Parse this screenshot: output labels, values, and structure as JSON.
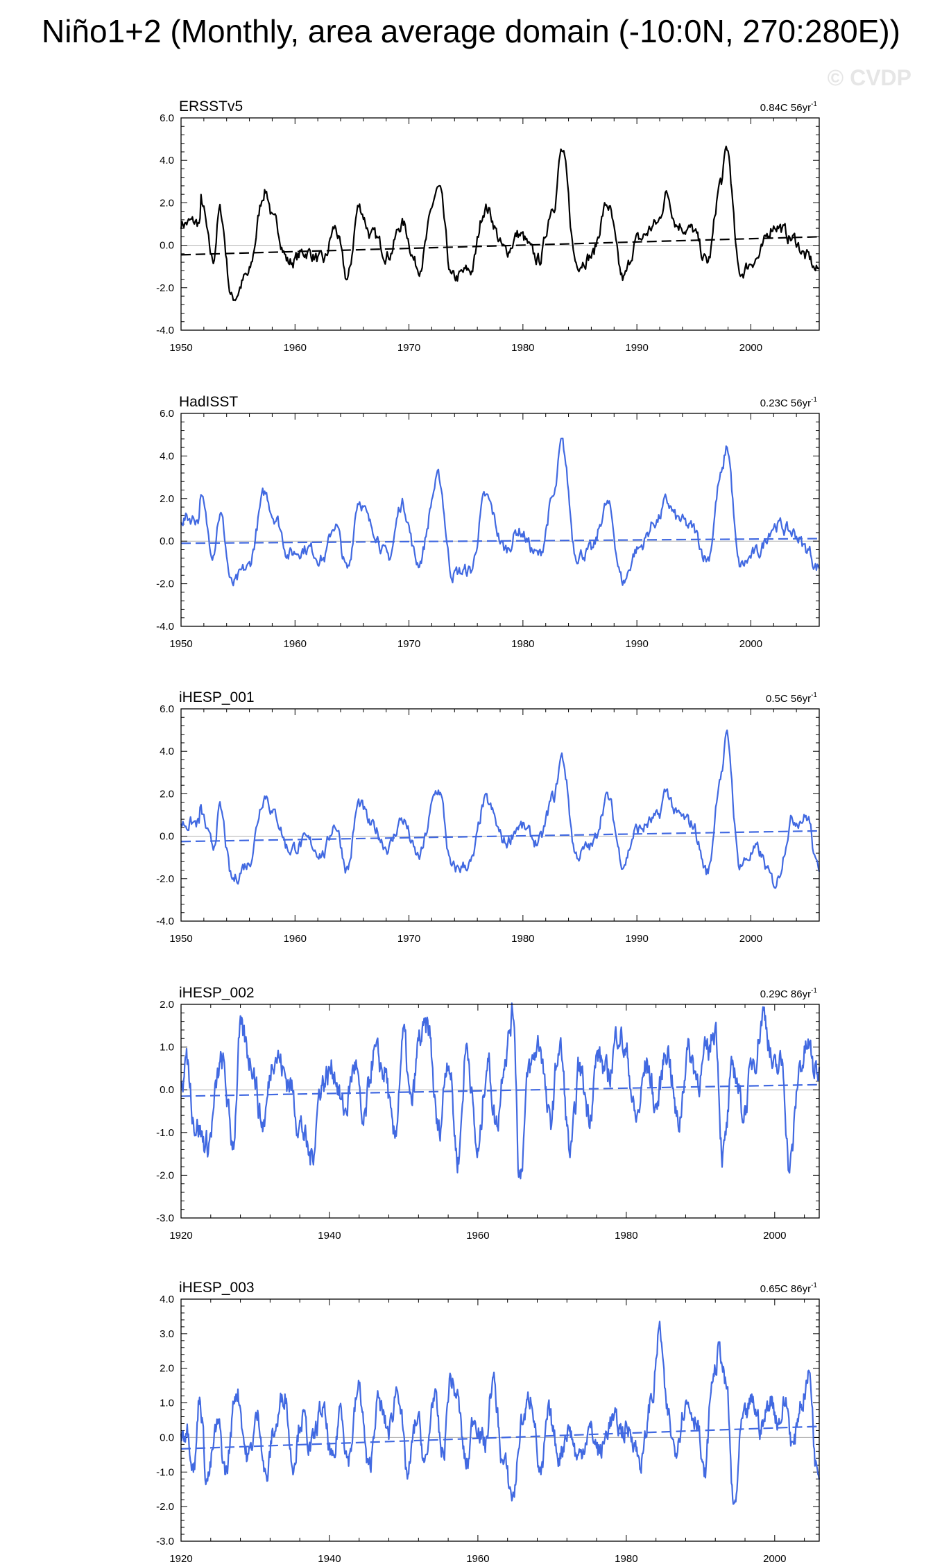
{
  "page": {
    "title": "Niño1+2 (Monthly, area average domain (-10:0N, 270:280E))",
    "watermark": "© CVDP"
  },
  "colors": {
    "obs": "#000000",
    "model": "#4169e1",
    "zero": "#b0b0b0"
  },
  "chart_data": [
    {
      "type": "line",
      "name": "ERSSTv5",
      "title": "ERSSTv5",
      "trend_label": "0.84C 56yr",
      "trend_sup": "-1",
      "color": "obs",
      "xlim": [
        1950,
        2006
      ],
      "ylim": [
        -4.0,
        6.0
      ],
      "yticks": [
        "6.0",
        "4.0",
        "2.0",
        "0.0",
        "-2.0",
        "-4.0"
      ],
      "xticks": [
        "1950",
        "1960",
        "1970",
        "1980",
        "1990",
        "2000"
      ],
      "trend": [
        -0.45,
        0.4
      ],
      "events": [
        [
          1951.7,
          2.1
        ],
        [
          1952.8,
          -0.7
        ],
        [
          1953.4,
          1.6
        ],
        [
          1954.5,
          -2.5
        ],
        [
          1955.8,
          -1.5
        ],
        [
          1957.4,
          2.6
        ],
        [
          1958.2,
          1.0
        ],
        [
          1959.5,
          -0.8
        ],
        [
          1961.0,
          -0.3
        ],
        [
          1962.5,
          -0.8
        ],
        [
          1963.5,
          0.8
        ],
        [
          1964.6,
          -1.6
        ],
        [
          1965.6,
          1.8
        ],
        [
          1966.8,
          0.4
        ],
        [
          1968.2,
          -0.4
        ],
        [
          1969.4,
          1.0
        ],
        [
          1970.8,
          -1.0
        ],
        [
          1972.6,
          2.6
        ],
        [
          1973.8,
          -1.6
        ],
        [
          1975.4,
          -1.2
        ],
        [
          1976.7,
          1.8
        ],
        [
          1978.5,
          -0.3
        ],
        [
          1979.6,
          0.5
        ],
        [
          1981.4,
          -0.7
        ],
        [
          1982.7,
          2.0
        ],
        [
          1983.4,
          4.4
        ],
        [
          1984.7,
          -0.8
        ],
        [
          1986.0,
          -0.5
        ],
        [
          1987.4,
          1.9
        ],
        [
          1988.8,
          -1.6
        ],
        [
          1990.0,
          0.2
        ],
        [
          1991.8,
          1.0
        ],
        [
          1992.6,
          2.4
        ],
        [
          1993.6,
          1.0
        ],
        [
          1994.8,
          0.7
        ],
        [
          1996.2,
          -0.8
        ],
        [
          1997.4,
          3.0
        ],
        [
          1997.9,
          4.5
        ],
        [
          1999.0,
          -1.3
        ],
        [
          2000.5,
          -0.6
        ],
        [
          2002.1,
          1.0
        ],
        [
          2003.7,
          0.3
        ],
        [
          2005.0,
          -0.6
        ],
        [
          2005.8,
          -1.2
        ]
      ]
    },
    {
      "type": "line",
      "name": "HadISST",
      "title": "HadISST",
      "trend_label": "0.23C 56yr",
      "trend_sup": "-1",
      "color": "model",
      "xlim": [
        1950,
        2006
      ],
      "ylim": [
        -4.0,
        6.0
      ],
      "yticks": [
        "6.0",
        "4.0",
        "2.0",
        "0.0",
        "-2.0",
        "-4.0"
      ],
      "xticks": [
        "1950",
        "1960",
        "1970",
        "1980",
        "1990",
        "2000"
      ],
      "trend": [
        -0.1,
        0.12
      ],
      "events": [
        [
          1951.6,
          2.2
        ],
        [
          1952.8,
          -0.4
        ],
        [
          1953.4,
          1.3
        ],
        [
          1954.5,
          -2.1
        ],
        [
          1955.8,
          -1.3
        ],
        [
          1957.4,
          2.2
        ],
        [
          1958.2,
          1.2
        ],
        [
          1959.5,
          -0.6
        ],
        [
          1961.0,
          -0.3
        ],
        [
          1962.5,
          -0.8
        ],
        [
          1963.5,
          0.8
        ],
        [
          1964.6,
          -1.4
        ],
        [
          1965.6,
          2.0
        ],
        [
          1966.8,
          0.6
        ],
        [
          1968.2,
          -0.8
        ],
        [
          1969.4,
          1.8
        ],
        [
          1970.8,
          -1.0
        ],
        [
          1972.6,
          2.9
        ],
        [
          1973.8,
          -1.5
        ],
        [
          1975.4,
          -1.4
        ],
        [
          1976.7,
          2.0
        ],
        [
          1978.5,
          -0.4
        ],
        [
          1979.6,
          0.5
        ],
        [
          1981.4,
          -0.7
        ],
        [
          1982.7,
          2.0
        ],
        [
          1983.4,
          4.5
        ],
        [
          1984.7,
          -0.6
        ],
        [
          1986.0,
          -0.5
        ],
        [
          1987.4,
          1.7
        ],
        [
          1988.8,
          -1.9
        ],
        [
          1990.0,
          -0.4
        ],
        [
          1991.8,
          1.0
        ],
        [
          1992.6,
          1.8
        ],
        [
          1993.6,
          1.0
        ],
        [
          1994.8,
          0.6
        ],
        [
          1996.2,
          -0.8
        ],
        [
          1997.4,
          3.0
        ],
        [
          1997.9,
          4.4
        ],
        [
          1999.0,
          -1.2
        ],
        [
          2000.5,
          -0.6
        ],
        [
          2002.1,
          0.8
        ],
        [
          2003.7,
          0.4
        ],
        [
          2005.0,
          -0.4
        ],
        [
          2005.8,
          -1.2
        ]
      ]
    },
    {
      "type": "line",
      "name": "iHESP_001",
      "title": "iHESP_001",
      "trend_label": "0.5C 56yr",
      "trend_sup": "-1",
      "color": "model",
      "xlim": [
        1950,
        2006
      ],
      "ylim": [
        -4.0,
        6.0
      ],
      "yticks": [
        "6.0",
        "4.0",
        "2.0",
        "0.0",
        "-2.0",
        "-4.0"
      ],
      "xticks": [
        "1950",
        "1960",
        "1970",
        "1980",
        "1990",
        "2000"
      ],
      "trend": [
        -0.25,
        0.25
      ],
      "events": [
        [
          1951.6,
          1.2
        ],
        [
          1952.8,
          -0.5
        ],
        [
          1953.4,
          1.2
        ],
        [
          1954.5,
          -2.1
        ],
        [
          1955.8,
          -1.3
        ],
        [
          1957.4,
          2.0
        ],
        [
          1958.2,
          1.0
        ],
        [
          1959.5,
          -0.6
        ],
        [
          1961.0,
          -0.3
        ],
        [
          1962.5,
          -0.8
        ],
        [
          1963.5,
          0.6
        ],
        [
          1964.6,
          -1.5
        ],
        [
          1965.6,
          1.5
        ],
        [
          1966.8,
          0.4
        ],
        [
          1968.2,
          -0.5
        ],
        [
          1969.4,
          0.8
        ],
        [
          1970.8,
          -1.0
        ],
        [
          1972.6,
          2.2
        ],
        [
          1973.8,
          -1.6
        ],
        [
          1975.4,
          -1.3
        ],
        [
          1976.7,
          1.6
        ],
        [
          1978.5,
          -0.3
        ],
        [
          1979.6,
          0.5
        ],
        [
          1981.4,
          -0.3
        ],
        [
          1982.7,
          1.8
        ],
        [
          1983.4,
          3.7
        ],
        [
          1984.7,
          -0.9
        ],
        [
          1986.0,
          -0.5
        ],
        [
          1987.4,
          1.8
        ],
        [
          1988.8,
          -1.2
        ],
        [
          1990.0,
          0.3
        ],
        [
          1991.8,
          0.8
        ],
        [
          1992.6,
          2.1
        ],
        [
          1993.6,
          0.9
        ],
        [
          1994.8,
          0.6
        ],
        [
          1996.2,
          -1.7
        ],
        [
          1997.4,
          3.0
        ],
        [
          1997.9,
          4.6
        ],
        [
          1999.0,
          -1.3
        ],
        [
          2000.5,
          -0.7
        ],
        [
          2002.1,
          -2.2
        ],
        [
          2003.7,
          0.8
        ],
        [
          2005.0,
          0.9
        ],
        [
          2005.8,
          -1.5
        ]
      ]
    },
    {
      "type": "line",
      "name": "iHESP_002",
      "title": "iHESP_002",
      "trend_label": "0.29C 86yr",
      "trend_sup": "-1",
      "color": "model",
      "xlim": [
        1920,
        2006
      ],
      "ylim": [
        -3.0,
        2.0
      ],
      "yticks": [
        "2.0",
        "1.0",
        "0.0",
        "-1.0",
        "-2.0",
        "-3.0"
      ],
      "xticks": [
        "1920",
        "1940",
        "1960",
        "1980",
        "2000"
      ],
      "trend": [
        -0.15,
        0.12
      ],
      "events": [
        [
          1920.6,
          0.8
        ],
        [
          1922.0,
          -0.8
        ],
        [
          1923.5,
          -1.3
        ],
        [
          1925.5,
          0.6
        ],
        [
          1927.0,
          -1.2
        ],
        [
          1928.0,
          1.3
        ],
        [
          1929.5,
          0.7
        ],
        [
          1931.0,
          -0.8
        ],
        [
          1932.6,
          0.9
        ],
        [
          1934.5,
          0.2
        ],
        [
          1936.0,
          -0.8
        ],
        [
          1937.5,
          -1.6
        ],
        [
          1939.0,
          0.2
        ],
        [
          1940.5,
          0.5
        ],
        [
          1942.0,
          -0.5
        ],
        [
          1943.5,
          0.6
        ],
        [
          1944.5,
          -0.9
        ],
        [
          1946.0,
          0.8
        ],
        [
          1947.5,
          0.4
        ],
        [
          1948.7,
          -1.2
        ],
        [
          1950.0,
          1.2
        ],
        [
          1951.0,
          -0.4
        ],
        [
          1952.2,
          1.2
        ],
        [
          1953.3,
          1.4
        ],
        [
          1954.7,
          -1.0
        ],
        [
          1956.0,
          0.8
        ],
        [
          1957.3,
          -1.6
        ],
        [
          1958.5,
          1.0
        ],
        [
          1960.0,
          -1.5
        ],
        [
          1961.3,
          0.7
        ],
        [
          1962.5,
          -0.8
        ],
        [
          1963.7,
          0.9
        ],
        [
          1964.8,
          1.8
        ],
        [
          1965.6,
          -2.0
        ],
        [
          1967.0,
          0.5
        ],
        [
          1968.3,
          1.1
        ],
        [
          1969.7,
          -0.8
        ],
        [
          1971.0,
          1.0
        ],
        [
          1972.5,
          -1.5
        ],
        [
          1973.7,
          0.5
        ],
        [
          1975.0,
          -0.5
        ],
        [
          1976.2,
          0.8
        ],
        [
          1977.5,
          0.3
        ],
        [
          1979.0,
          1.4
        ],
        [
          1980.0,
          0.8
        ],
        [
          1981.3,
          -0.7
        ],
        [
          1982.8,
          0.6
        ],
        [
          1984.0,
          -0.4
        ],
        [
          1985.5,
          1.0
        ],
        [
          1987.0,
          -0.8
        ],
        [
          1988.3,
          0.9
        ],
        [
          1989.8,
          0.3
        ],
        [
          1991.0,
          0.9
        ],
        [
          1992.0,
          1.5
        ],
        [
          1993.0,
          -1.5
        ],
        [
          1994.5,
          0.5
        ],
        [
          1995.8,
          -0.5
        ],
        [
          1997.3,
          0.8
        ],
        [
          1998.5,
          1.8
        ],
        [
          2000.0,
          0.4
        ],
        [
          2001.0,
          0.6
        ],
        [
          2002.0,
          -1.8
        ],
        [
          2003.5,
          0.6
        ],
        [
          2004.5,
          1.0
        ],
        [
          2005.5,
          0.4
        ]
      ]
    },
    {
      "type": "line",
      "name": "iHESP_003",
      "title": "iHESP_003",
      "trend_label": "0.65C 86yr",
      "trend_sup": "-1",
      "color": "model",
      "xlim": [
        1920,
        2006
      ],
      "ylim": [
        -3.0,
        4.0
      ],
      "yticks": [
        "4.0",
        "3.0",
        "2.0",
        "1.0",
        "0.0",
        "-1.0",
        "-2.0",
        "-3.0"
      ],
      "xticks": [
        "1920",
        "1940",
        "1960",
        "1980",
        "2000"
      ],
      "trend": [
        -0.33,
        0.32
      ],
      "events": [
        [
          1920.6,
          0.5
        ],
        [
          1921.8,
          -0.8
        ],
        [
          1922.5,
          1.2
        ],
        [
          1923.5,
          -1.2
        ],
        [
          1925.0,
          0.3
        ],
        [
          1926.0,
          -1.0
        ],
        [
          1927.5,
          1.4
        ],
        [
          1929.0,
          -0.6
        ],
        [
          1930.4,
          0.6
        ],
        [
          1931.5,
          -1.2
        ],
        [
          1932.5,
          0.2
        ],
        [
          1934.0,
          1.3
        ],
        [
          1935.0,
          -0.7
        ],
        [
          1936.3,
          0.6
        ],
        [
          1937.5,
          -0.3
        ],
        [
          1939.0,
          0.8
        ],
        [
          1940.5,
          -0.8
        ],
        [
          1941.5,
          0.9
        ],
        [
          1942.5,
          -0.6
        ],
        [
          1944.0,
          1.4
        ],
        [
          1945.3,
          -1.0
        ],
        [
          1946.5,
          1.0
        ],
        [
          1948.0,
          0.2
        ],
        [
          1949.2,
          1.5
        ],
        [
          1950.5,
          -1.1
        ],
        [
          1951.8,
          0.5
        ],
        [
          1953.0,
          -0.8
        ],
        [
          1954.0,
          1.2
        ],
        [
          1955.3,
          -0.5
        ],
        [
          1956.3,
          1.7
        ],
        [
          1957.0,
          1.3
        ],
        [
          1958.5,
          -0.8
        ],
        [
          1959.5,
          0.6
        ],
        [
          1961.0,
          -0.2
        ],
        [
          1962.0,
          1.6
        ],
        [
          1963.5,
          -0.8
        ],
        [
          1964.7,
          -1.7
        ],
        [
          1966.0,
          0.5
        ],
        [
          1967.2,
          1.2
        ],
        [
          1968.5,
          -1.2
        ],
        [
          1969.5,
          0.6
        ],
        [
          1971.0,
          -0.5
        ],
        [
          1972.2,
          0.3
        ],
        [
          1973.5,
          -0.6
        ],
        [
          1975.0,
          0.2
        ],
        [
          1976.5,
          -0.4
        ],
        [
          1978.0,
          0.5
        ],
        [
          1979.5,
          0.2
        ],
        [
          1980.5,
          0.2
        ],
        [
          1982.0,
          -0.7
        ],
        [
          1983.5,
          1.2
        ],
        [
          1984.5,
          3.1
        ],
        [
          1985.5,
          0.7
        ],
        [
          1986.5,
          -0.3
        ],
        [
          1988.0,
          1.0
        ],
        [
          1989.5,
          0.6
        ],
        [
          1990.5,
          -1.2
        ],
        [
          1991.7,
          1.8
        ],
        [
          1992.6,
          2.5
        ],
        [
          1993.5,
          1.4
        ],
        [
          1994.5,
          -2.1
        ],
        [
          1995.7,
          0.4
        ],
        [
          1997.0,
          1.0
        ],
        [
          1998.2,
          0.3
        ],
        [
          1999.5,
          1.1
        ],
        [
          2000.5,
          0.5
        ],
        [
          2001.5,
          1.0
        ],
        [
          2002.5,
          -0.3
        ],
        [
          2003.5,
          1.0
        ],
        [
          2004.7,
          1.8
        ],
        [
          2005.6,
          -0.8
        ]
      ]
    }
  ]
}
